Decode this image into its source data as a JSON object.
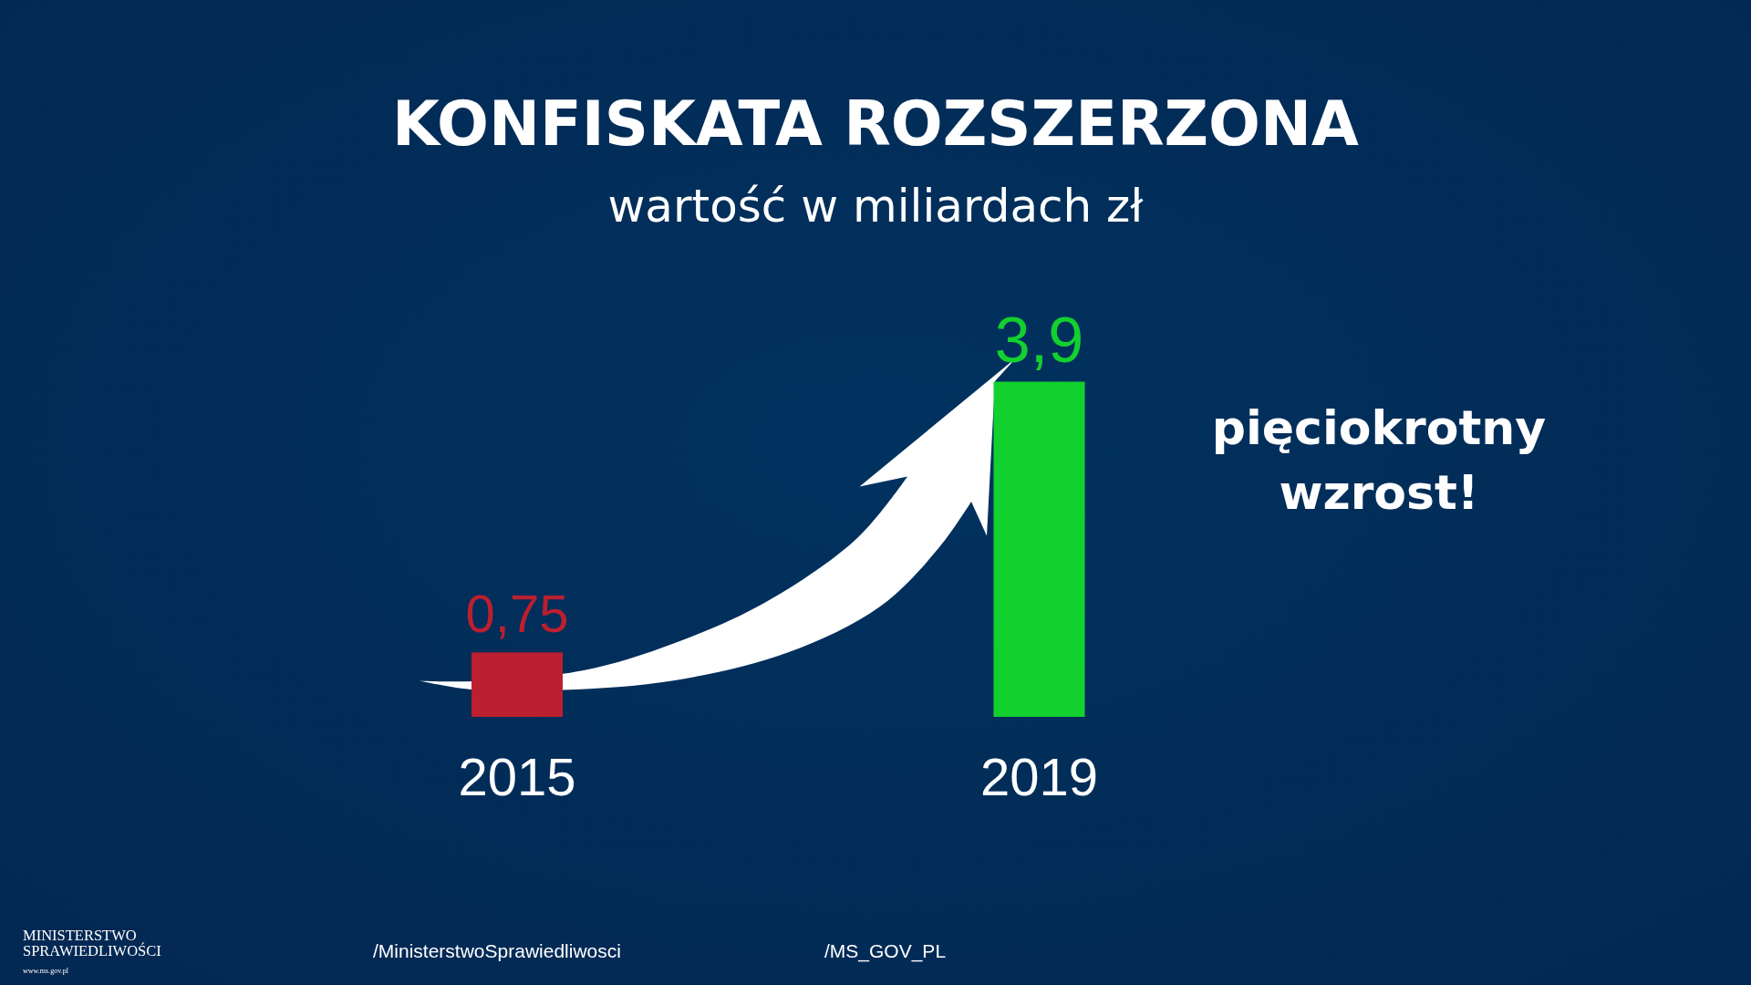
{
  "chart_data": {
    "type": "bar",
    "title": "KONFISKATA ROZSZERZONA",
    "subtitle": "wartość w miliardach zł",
    "categories": [
      "2015",
      "2019"
    ],
    "values": [
      0.75,
      3.9
    ],
    "colors": [
      "#bc1f2f",
      "#12d12e"
    ],
    "value_labels": [
      "0,75",
      "3,9"
    ],
    "annotations": [
      "pięciokrotny wzrost!",
      "MINISTERSTWO SPRAWIEDLIWOŚCI",
      "www.ms.gov.pl",
      "/MinisterstwoSprawiedliwosci",
      "/MS_GOV_PL"
    ]
  }
}
